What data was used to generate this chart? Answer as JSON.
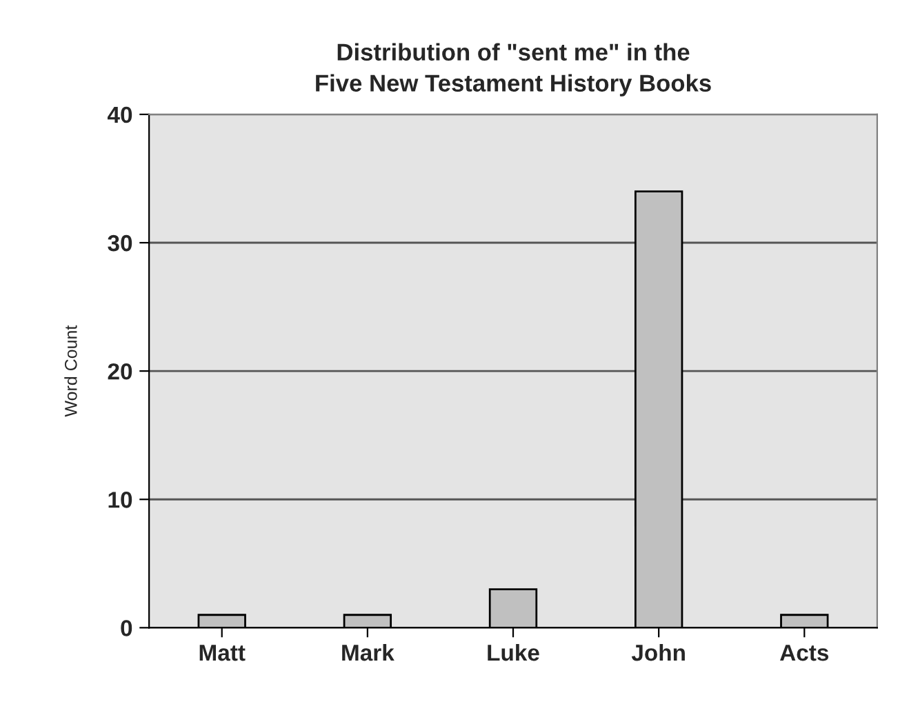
{
  "chart_data": {
    "type": "bar",
    "title": "Distribution of \"sent me\" in the\nFive New Testament History Books",
    "ylabel": "Word Count",
    "categories": [
      "Matt",
      "Mark",
      "Luke",
      "John",
      "Acts"
    ],
    "values": [
      1,
      1,
      3,
      34,
      1
    ],
    "color": "#c0c0c0",
    "ylim": [
      0,
      40
    ],
    "yticks": [
      0,
      10,
      20,
      30,
      40
    ],
    "grid": "y",
    "legend": false
  }
}
